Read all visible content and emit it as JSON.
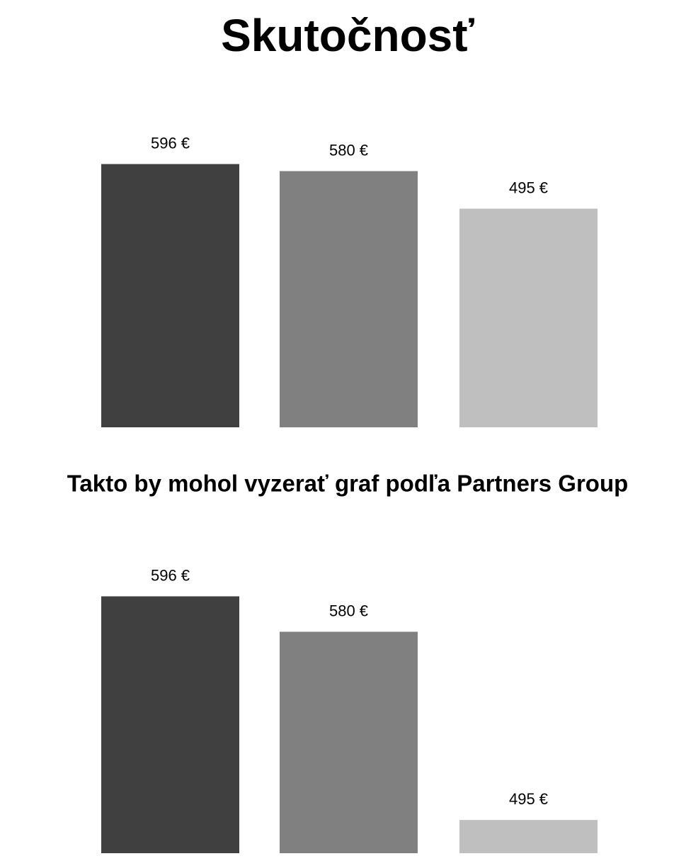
{
  "chart_data": [
    {
      "type": "bar",
      "title": "Skutočnosť",
      "values": [
        596,
        580,
        495
      ],
      "value_labels": [
        "596 €",
        "580 €",
        "495 €"
      ],
      "colors": [
        "#404040",
        "#808080",
        "#bfbfbf"
      ],
      "ylim": [
        0,
        600
      ]
    },
    {
      "type": "bar",
      "title": "Takto by mohol vyzerať graf podľa Partners Group",
      "values": [
        596,
        580,
        495
      ],
      "value_labels": [
        "596 €",
        "580 €",
        "495 €"
      ],
      "colors": [
        "#404040",
        "#808080",
        "#bfbfbf"
      ],
      "ylim": [
        480,
        600
      ]
    }
  ]
}
